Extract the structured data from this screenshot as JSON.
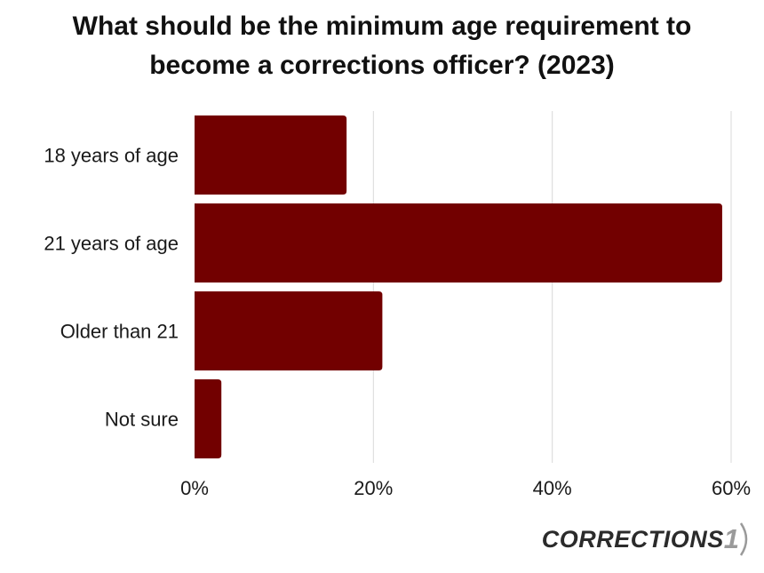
{
  "chart_data": {
    "type": "bar",
    "orientation": "horizontal",
    "title_lines": [
      "What should be the minimum age requirement to",
      "become a corrections officer? (2023)"
    ],
    "categories": [
      "18 years of age",
      "21 years of age",
      "Older than 21",
      "Not sure"
    ],
    "values": [
      17,
      59,
      21,
      3
    ],
    "unit": "%",
    "xlim": [
      0,
      60
    ],
    "xticks": [
      0,
      20,
      40,
      60
    ],
    "xtick_labels": [
      "0%",
      "20%",
      "40%",
      "60%"
    ],
    "grid": true,
    "bar_color": "#720000",
    "grid_color": "#d9d9d9"
  },
  "branding": {
    "logo_text": "CORRECTIONS",
    "logo_number": "1"
  }
}
